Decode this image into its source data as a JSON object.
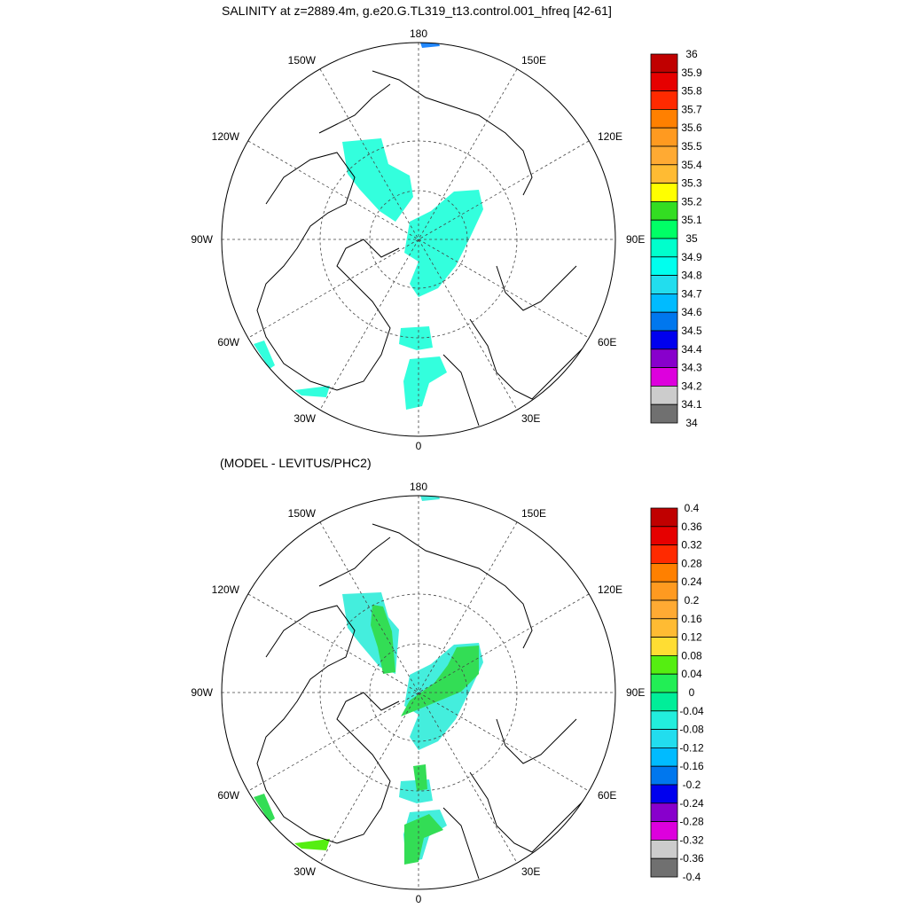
{
  "title": "SALINITY at z=2889.4m, g.e20.G.TL319_t13.control.001_hfreq [42-61]",
  "subtitle": "(MODEL - LEVITUS/PHC2)",
  "maps": [
    {
      "name": "salinity-map",
      "longitude_labels": [
        "180",
        "150E",
        "120E",
        "90E",
        "60E",
        "30E",
        "0",
        "30W",
        "60W",
        "90W",
        "120W",
        "150W"
      ],
      "colorbar": {
        "labels": [
          "36",
          "35.9",
          "35.8",
          "35.7",
          "35.6",
          "35.5",
          "35.4",
          "35.3",
          "35.2",
          "35.1",
          "35",
          "34.9",
          "34.8",
          "34.7",
          "34.6",
          "34.5",
          "34.4",
          "34.3",
          "34.2",
          "34.1",
          "34"
        ],
        "colors": [
          "#c00000",
          "#e60000",
          "#ff2a00",
          "#ff8000",
          "#ff9a20",
          "#ffaa33",
          "#ffbb33",
          "#ffff00",
          "#33dd22",
          "#00ff66",
          "#00ffcc",
          "#00ffee",
          "#22ddee",
          "#00bbff",
          "#0077ee",
          "#0000ee",
          "#8800cc",
          "#dd00dd",
          "#cccccc",
          "#707070"
        ]
      }
    },
    {
      "name": "difference-map",
      "longitude_labels": [
        "180",
        "150E",
        "120E",
        "90E",
        "60E",
        "30E",
        "0",
        "30W",
        "60W",
        "90W",
        "120W",
        "150W"
      ],
      "colorbar": {
        "labels": [
          "0.4",
          "0.36",
          "0.32",
          "0.28",
          "0.24",
          "0.2",
          "0.16",
          "0.12",
          "0.08",
          "0.04",
          "0",
          "-0.04",
          "-0.08",
          "-0.12",
          "-0.16",
          "-0.2",
          "-0.24",
          "-0.28",
          "-0.32",
          "-0.36",
          "-0.4"
        ],
        "colors": [
          "#c00000",
          "#e60000",
          "#ff2a00",
          "#ff8000",
          "#ff9a20",
          "#ffaa33",
          "#ffbb33",
          "#ffdd33",
          "#55ee11",
          "#22ee55",
          "#00ee99",
          "#22eedd",
          "#22ddee",
          "#00bbff",
          "#0077ee",
          "#0000ee",
          "#8800cc",
          "#dd00dd",
          "#cccccc",
          "#707070"
        ]
      }
    }
  ],
  "palette": {
    "salinity_fill": "#33ffdd",
    "difference_fill_cyan": "#44eedd",
    "difference_fill_green": "#33dd55"
  }
}
